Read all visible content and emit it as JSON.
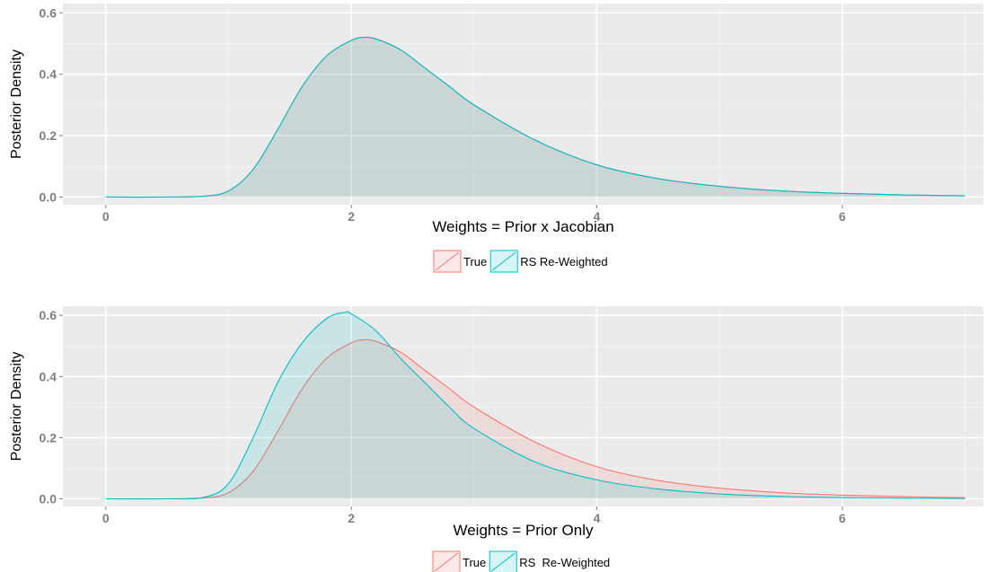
{
  "colors": {
    "true_series": "#F8766D",
    "rs_series": "#00BFC4",
    "panel_bg": "#EBEBEB",
    "grid_major": "#FFFFFF",
    "grid_minor": "#F4F4F4"
  },
  "chart_data": [
    {
      "type": "area",
      "xlabel": "Weights = Prior x Jacobian",
      "ylabel": "Posterior Density",
      "xlim": [
        -0.35,
        7.15
      ],
      "ylim": [
        -0.025,
        0.63
      ],
      "xticks": [
        0,
        2,
        4,
        6
      ],
      "xtick_labels": [
        "0",
        "2",
        "4",
        "6"
      ],
      "yticks": [
        0.0,
        0.2,
        0.4,
        0.6
      ],
      "ytick_labels": [
        "0.0",
        "0.2",
        "0.4",
        "0.6"
      ],
      "grid": true,
      "legend": {
        "position": "bottom",
        "entries": [
          "True",
          "RS Re-Weighted"
        ]
      },
      "series": [
        {
          "name": "True",
          "x": [
            0,
            0.5,
            0.8,
            1.0,
            1.2,
            1.4,
            1.6,
            1.8,
            2.0,
            2.1,
            2.2,
            2.4,
            2.6,
            2.8,
            3.0,
            3.5,
            4.0,
            4.5,
            5.0,
            5.5,
            6.0,
            6.5,
            7.0
          ],
          "y": [
            0,
            0,
            0.003,
            0.02,
            0.09,
            0.22,
            0.36,
            0.46,
            0.51,
            0.52,
            0.515,
            0.48,
            0.42,
            0.36,
            0.3,
            0.185,
            0.105,
            0.06,
            0.035,
            0.02,
            0.012,
            0.007,
            0.004
          ]
        },
        {
          "name": "RS Re-Weighted",
          "x": [
            0,
            0.5,
            0.8,
            1.0,
            1.2,
            1.4,
            1.6,
            1.8,
            2.0,
            2.1,
            2.2,
            2.4,
            2.6,
            2.8,
            3.0,
            3.5,
            4.0,
            4.5,
            5.0,
            5.5,
            6.0,
            6.5,
            7.0
          ],
          "y": [
            0,
            0,
            0.003,
            0.02,
            0.09,
            0.22,
            0.36,
            0.46,
            0.51,
            0.52,
            0.515,
            0.48,
            0.42,
            0.36,
            0.3,
            0.185,
            0.105,
            0.06,
            0.035,
            0.02,
            0.012,
            0.007,
            0.004
          ]
        }
      ]
    },
    {
      "type": "area",
      "xlabel": "Weights = Prior Only",
      "ylabel": "Posterior Density",
      "xlim": [
        -0.35,
        7.15
      ],
      "ylim": [
        -0.025,
        0.63
      ],
      "xticks": [
        0,
        2,
        4,
        6
      ],
      "xtick_labels": [
        "0",
        "2",
        "4",
        "6"
      ],
      "yticks": [
        0.0,
        0.2,
        0.4,
        0.6
      ],
      "ytick_labels": [
        "0.0",
        "0.2",
        "0.4",
        "0.6"
      ],
      "grid": true,
      "legend": {
        "position": "bottom",
        "entries": [
          "True",
          "RS  Re-Weighted"
        ]
      },
      "series": [
        {
          "name": "True",
          "x": [
            0,
            0.5,
            0.8,
            1.0,
            1.2,
            1.4,
            1.6,
            1.8,
            2.0,
            2.1,
            2.2,
            2.4,
            2.6,
            2.8,
            3.0,
            3.5,
            4.0,
            4.5,
            5.0,
            5.5,
            6.0,
            6.5,
            7.0
          ],
          "y": [
            0,
            0,
            0.003,
            0.02,
            0.09,
            0.22,
            0.36,
            0.46,
            0.51,
            0.52,
            0.515,
            0.48,
            0.42,
            0.36,
            0.3,
            0.185,
            0.105,
            0.06,
            0.035,
            0.02,
            0.012,
            0.007,
            0.004
          ]
        },
        {
          "name": "RS  Re-Weighted",
          "x": [
            0,
            0.5,
            0.8,
            1.0,
            1.2,
            1.4,
            1.6,
            1.8,
            1.95,
            2.0,
            2.2,
            2.4,
            2.6,
            2.8,
            3.0,
            3.5,
            4.0,
            4.5,
            5.0,
            5.5,
            6.0,
            6.5,
            7.0
          ],
          "y": [
            0,
            0,
            0.005,
            0.05,
            0.2,
            0.38,
            0.51,
            0.59,
            0.61,
            0.605,
            0.55,
            0.46,
            0.38,
            0.3,
            0.23,
            0.12,
            0.062,
            0.032,
            0.016,
            0.008,
            0.004,
            0.002,
            0.001
          ]
        }
      ]
    }
  ]
}
